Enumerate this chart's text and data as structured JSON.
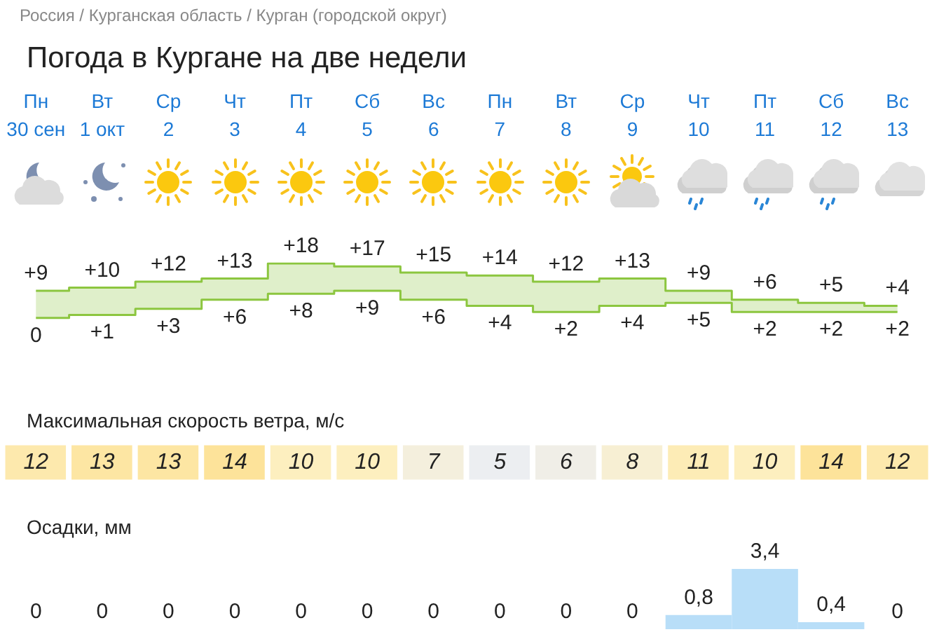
{
  "chart_data": [
    {
      "type": "step",
      "title": "Погода в Кургане на две недели",
      "annotations": [
        "Россия / Курганская область / Курган (городской округ)"
      ],
      "categories": [
        "Пн\n30 сен",
        "Вт\n1 окт",
        "Ср\n2",
        "Чт\n3",
        "Пт\n4",
        "Сб\n5",
        "Вс\n6",
        "Пн\n7",
        "Вт\n8",
        "Ср\n9",
        "Чт\n10",
        "Пт\n11",
        "Сб\n12",
        "Вс\n13"
      ],
      "series": [
        {
          "color": "#8cc63f",
          "values": [
            9,
            10,
            12,
            13,
            18,
            17,
            15,
            14,
            12,
            13,
            9,
            6,
            5,
            4
          ],
          "value_labels": [
            "+9",
            "+10",
            "+12",
            "+13",
            "+18",
            "+17",
            "+15",
            "+14",
            "+12",
            "+13",
            "+9",
            "+6",
            "+5",
            "+4"
          ]
        },
        {
          "color": "#8cc63f",
          "values": [
            0,
            1,
            3,
            6,
            8,
            9,
            6,
            4,
            2,
            4,
            5,
            2,
            2,
            2
          ],
          "value_labels": [
            "0",
            "+1",
            "+3",
            "+6",
            "+8",
            "+9",
            "+6",
            "+4",
            "+2",
            "+4",
            "+5",
            "+2",
            "+2",
            "+2"
          ]
        }
      ],
      "tick_labels": "x"
    },
    {
      "type": "heatmap",
      "title": "Максимальная скорость ветра, м/с",
      "categories": [
        null,
        null,
        null,
        null,
        null,
        null,
        null,
        null,
        null,
        null,
        null,
        null,
        null,
        null
      ],
      "y_categories": [
        null
      ],
      "cells": [
        [
          12,
          13,
          13,
          14,
          10,
          10,
          7,
          5,
          6,
          8,
          11,
          10,
          14,
          12
        ]
      ],
      "data_labels": true,
      "tick_labels": false
    },
    {
      "type": "bar",
      "title": "Осадки, мм",
      "categories": [
        null,
        null,
        null,
        null,
        null,
        null,
        null,
        null,
        null,
        null,
        null,
        null,
        null,
        null
      ],
      "values": [
        0,
        0,
        0,
        0,
        0,
        0,
        0,
        0,
        0,
        0,
        0.8,
        3.4,
        0.4,
        0
      ],
      "value_labels": [
        "0",
        "0",
        "0",
        "0",
        "0",
        "0",
        "0",
        "0",
        "0",
        "0",
        "0,8",
        "3,4",
        "0,4",
        "0"
      ],
      "color": "#b8def8",
      "tick_labels": false
    }
  ]
}
